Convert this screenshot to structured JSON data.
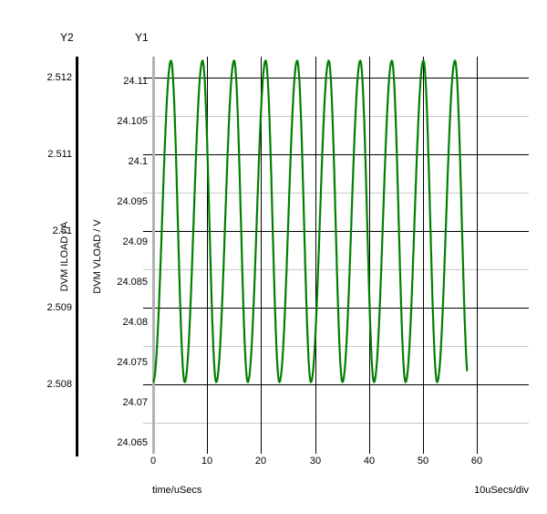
{
  "window": {
    "background": "#ffffff"
  },
  "axes": {
    "y2": {
      "name": "Y2",
      "label": "DVM ILOAD / A",
      "tick_labels": [
        "2.512",
        "2.511",
        "2.51",
        "2.509",
        "2.508"
      ],
      "axis_color": "#000000"
    },
    "y1": {
      "name": "Y1",
      "label": "DVM VLOAD / V",
      "tick_labels": [
        "24.11",
        "24.105",
        "24.1",
        "24.095",
        "24.09",
        "24.085",
        "24.08",
        "24.075",
        "24.07",
        "24.065"
      ],
      "axis_color": "#b3b3b3"
    },
    "x": {
      "label": "time/uSecs",
      "tick_labels": [
        "0",
        "10",
        "20",
        "30",
        "40",
        "50",
        "60"
      ],
      "per_div": "10uSecs/div"
    }
  },
  "grid": {
    "major_color": "#000000",
    "minor_color": "#c9c9c9"
  },
  "trace_color": "#008000",
  "chart_data": {
    "type": "line",
    "title": "",
    "x_axis": {
      "label": "time/uSecs",
      "units_per_div": "10uSecs/div",
      "ticks": [
        0,
        10,
        20,
        30,
        40,
        50,
        60
      ],
      "range": [
        0,
        62
      ]
    },
    "y1_axis": {
      "label": "DVM VLOAD / V",
      "ticks": [
        24.11,
        24.105,
        24.1,
        24.095,
        24.09,
        24.085,
        24.08,
        24.075,
        24.07,
        24.065
      ],
      "major_grid_step": 0.01,
      "minor_grid_step": 0.005,
      "range": [
        24.062,
        24.113
      ]
    },
    "y2_axis": {
      "label": "DVM ILOAD / A",
      "ticks": [
        2.512,
        2.511,
        2.51,
        2.509,
        2.508
      ],
      "range": [
        2.5074,
        2.5124
      ]
    },
    "series": [
      {
        "name": "DVM VLOAD",
        "axis": "y1",
        "color": "#008000",
        "waveform": {
          "shape": "periodic-ripple",
          "t_start_us": 0,
          "t_end_us": 58.2,
          "period_us": 5.85,
          "rise_us": 3.3,
          "fall_us": 2.55,
          "peak": 24.1122,
          "trough": 24.0703
        }
      },
      {
        "name": "DVM ILOAD",
        "axis": "y2",
        "color": "#008000",
        "overlaps_trace": "DVM VLOAD",
        "waveform": {
          "shape": "periodic-ripple",
          "t_start_us": 0,
          "t_end_us": 58.2,
          "period_us": 5.85,
          "rise_us": 3.3,
          "fall_us": 2.55,
          "peak": 2.5122,
          "trough": 2.508
        }
      }
    ]
  }
}
